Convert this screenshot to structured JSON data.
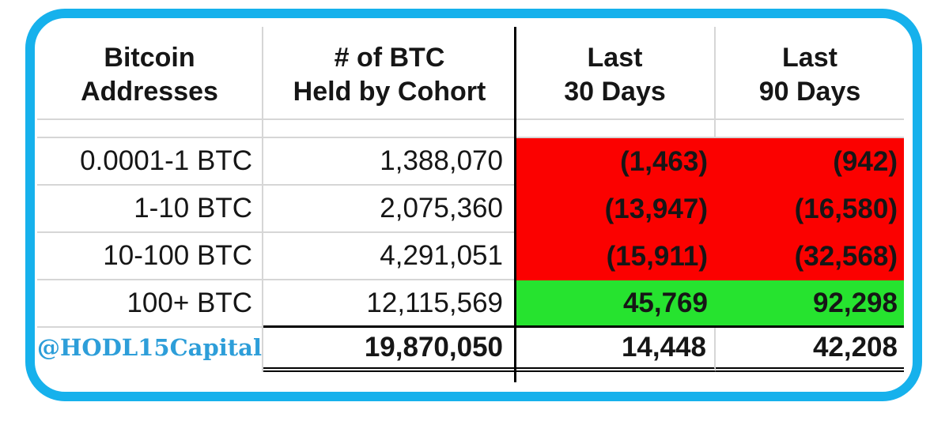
{
  "title": "Bitcoin addresses cohort table",
  "colors": {
    "card_border": "#16B1EC",
    "negative_bg": "#FB0100",
    "positive_bg": "#26E32F",
    "credit_color": "#2D9ED9"
  },
  "chart_data": {
    "type": "table",
    "columns": [
      "Bitcoin Addresses",
      "# of BTC Held by Cohort",
      "Last 30 Days",
      "Last 90 Days"
    ],
    "rows": [
      {
        "cohort": "0.0001-1 BTC",
        "btc_held": 1388070,
        "last_30_days": -1463,
        "last_90_days": -942
      },
      {
        "cohort": "1-10 BTC",
        "btc_held": 2075360,
        "last_30_days": -13947,
        "last_90_days": -16580
      },
      {
        "cohort": "10-100 BTC",
        "btc_held": 4291051,
        "last_30_days": -15911,
        "last_90_days": -32568
      },
      {
        "cohort": "100+ BTC",
        "btc_held": 12115569,
        "last_30_days": 45769,
        "last_90_days": 92298
      }
    ],
    "totals": {
      "btc_held": 19870050,
      "last_30_days": 14448,
      "last_90_days": 42208
    },
    "notes": "Negative cells shown in parentheses on red background; positive cohort row on green background"
  },
  "table": {
    "headers": [
      {
        "line1": "Bitcoin",
        "line2": "Addresses"
      },
      {
        "line1": "# of BTC",
        "line2": "Held by Cohort"
      },
      {
        "line1": "Last",
        "line2": "30 Days"
      },
      {
        "line1": "Last",
        "line2": "90 Days"
      }
    ],
    "rows": [
      {
        "cohort": "0.0001-1 BTC",
        "btc_held": "1,388,070",
        "last_30": "(1,463)",
        "last_90": "(942)"
      },
      {
        "cohort": "1-10 BTC",
        "btc_held": "2,075,360",
        "last_30": "(13,947)",
        "last_90": "(16,580)"
      },
      {
        "cohort": "10-100 BTC",
        "btc_held": "4,291,051",
        "last_30": "(15,911)",
        "last_90": "(32,568)"
      },
      {
        "cohort": "100+ BTC",
        "btc_held": "12,115,569",
        "last_30": "45,769",
        "last_90": "92,298"
      }
    ],
    "totals": {
      "credit": "@HODL15Capital",
      "btc_held": "19,870,050",
      "last_30": "14,448",
      "last_90": "42,208"
    }
  }
}
